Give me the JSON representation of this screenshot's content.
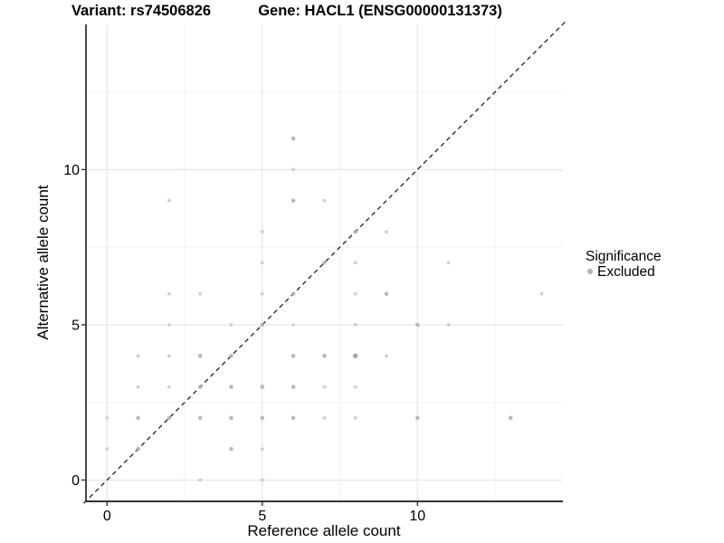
{
  "header": {
    "variant_title": "Variant: rs74506826",
    "gene_title": "Gene: HACL1 (ENSG00000131373)"
  },
  "axes": {
    "x": {
      "title": "Reference allele count",
      "ticks": [
        0,
        5,
        10
      ],
      "minor_ticks": [
        2.5,
        7.5,
        12.5
      ],
      "range": [
        -0.75,
        14.75
      ]
    },
    "y": {
      "title": "Alternative allele count",
      "ticks": [
        0,
        5,
        10
      ],
      "minor_ticks": [
        2.5,
        7.5,
        12.5
      ],
      "range": [
        -0.75,
        14.75
      ]
    }
  },
  "legend": {
    "title": "Significance",
    "items": [
      {
        "label": "Excluded",
        "color": "#b5b5b5"
      }
    ]
  },
  "style": {
    "background": "#ffffff",
    "grid_major": "#e4e4e4",
    "grid_minor": "#f2f2f2",
    "axis_line": "#333333",
    "identity_line_color": "#1a1a1a",
    "point_classes": {
      "1": {
        "color": "#c9c9c9",
        "r": 1.9
      },
      "2": {
        "color": "#b1b1b1",
        "r": 2.3
      },
      "3": {
        "color": "#9b9b9b",
        "r": 2.7
      }
    }
  },
  "chart_data": {
    "type": "scatter",
    "title_left": "Variant: rs74506826",
    "title_right": "Gene: HACL1 (ENSG00000131373)",
    "xlabel": "Reference allele count",
    "ylabel": "Alternative allele count",
    "xlim": [
      -0.75,
      14.75
    ],
    "ylim": [
      -0.75,
      14.75
    ],
    "x_ticks": [
      0,
      5,
      10
    ],
    "y_ticks": [
      0,
      5,
      10
    ],
    "grid": true,
    "legend_position": "right",
    "identity_line": {
      "type": "dashed",
      "equation": "y = x",
      "from": [
        -0.75,
        -0.75
      ],
      "to": [
        14.75,
        14.75
      ]
    },
    "series_name": "Excluded",
    "points_format": [
      "reference_allele_count",
      "alternative_allele_count",
      "overlap_level"
    ],
    "points": [
      [
        3,
        0,
        1
      ],
      [
        5,
        0,
        1
      ],
      [
        0,
        1,
        1
      ],
      [
        1,
        1,
        2
      ],
      [
        4,
        1,
        2
      ],
      [
        5,
        1,
        1
      ],
      [
        0,
        2,
        1
      ],
      [
        1,
        2,
        2
      ],
      [
        2,
        2,
        2
      ],
      [
        3,
        2,
        2
      ],
      [
        4,
        2,
        2
      ],
      [
        5,
        2,
        2
      ],
      [
        6,
        2,
        2
      ],
      [
        7,
        2,
        1
      ],
      [
        8,
        2,
        1
      ],
      [
        10,
        2,
        2
      ],
      [
        13,
        2,
        2
      ],
      [
        1,
        3,
        1
      ],
      [
        2,
        3,
        1
      ],
      [
        3,
        3,
        2
      ],
      [
        4,
        3,
        2
      ],
      [
        5,
        3,
        2
      ],
      [
        6,
        3,
        2
      ],
      [
        7,
        3,
        1
      ],
      [
        8,
        3,
        1
      ],
      [
        1,
        4,
        1
      ],
      [
        2,
        4,
        1
      ],
      [
        3,
        4,
        2
      ],
      [
        4,
        4,
        2
      ],
      [
        6,
        4,
        2
      ],
      [
        7,
        4,
        2
      ],
      [
        8,
        4,
        3
      ],
      [
        9,
        4,
        1
      ],
      [
        2,
        5,
        1
      ],
      [
        4,
        5,
        1
      ],
      [
        5,
        5,
        2
      ],
      [
        6,
        5,
        1
      ],
      [
        8,
        5,
        1
      ],
      [
        10,
        5,
        2
      ],
      [
        11,
        5,
        1
      ],
      [
        2,
        6,
        1
      ],
      [
        3,
        6,
        1
      ],
      [
        5,
        6,
        1
      ],
      [
        6,
        6,
        2
      ],
      [
        8,
        6,
        1
      ],
      [
        9,
        6,
        2
      ],
      [
        14,
        6,
        1
      ],
      [
        5,
        7,
        1
      ],
      [
        7,
        7,
        2
      ],
      [
        8,
        7,
        1
      ],
      [
        11,
        7,
        1
      ],
      [
        5,
        8,
        1
      ],
      [
        8,
        8,
        2
      ],
      [
        9,
        8,
        1
      ],
      [
        2,
        9,
        1
      ],
      [
        6,
        9,
        2
      ],
      [
        7,
        9,
        1
      ],
      [
        6,
        10,
        1
      ],
      [
        6,
        11,
        2
      ]
    ]
  }
}
